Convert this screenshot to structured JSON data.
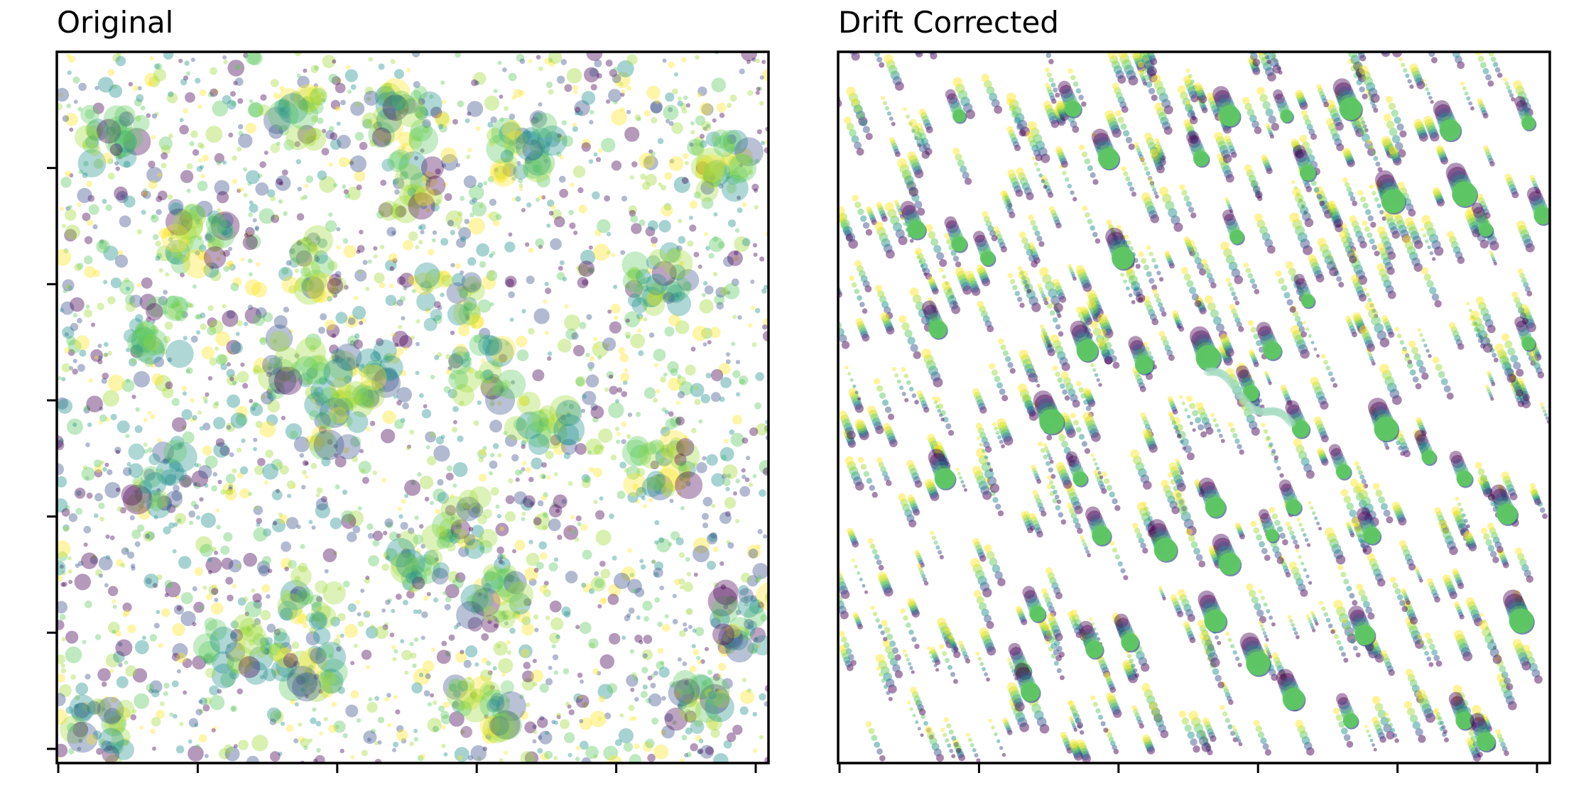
{
  "figure": {
    "panels": [
      {
        "id": "original",
        "title": "Original"
      },
      {
        "id": "drift",
        "title": "Drift Corrected"
      }
    ]
  },
  "chart_data": [
    {
      "type": "scatter",
      "title": "Original",
      "xlabel": "",
      "ylabel": "",
      "xlim": [
        0,
        1
      ],
      "ylim": [
        0,
        1
      ],
      "x_ticks_count": 6,
      "y_ticks_count": 6,
      "tick_labels": "none",
      "grid": false,
      "legend": "none",
      "colormap": "viridis",
      "colors": [
        "#440154",
        "#3b528b",
        "#21918c",
        "#5ec962",
        "#a0da39",
        "#fde725"
      ],
      "point_alpha": 0.4,
      "description_of_data": "dense cloud of semi-transparent circles of varying size; clusters of large green/teal circles scattered across the field",
      "clusters": [
        {
          "x": 0.08,
          "y": 0.88
        },
        {
          "x": 0.33,
          "y": 0.9
        },
        {
          "x": 0.49,
          "y": 0.91
        },
        {
          "x": 0.66,
          "y": 0.87
        },
        {
          "x": 0.94,
          "y": 0.84
        },
        {
          "x": 0.5,
          "y": 0.81
        },
        {
          "x": 0.2,
          "y": 0.74
        },
        {
          "x": 0.36,
          "y": 0.7
        },
        {
          "x": 0.55,
          "y": 0.65
        },
        {
          "x": 0.85,
          "y": 0.68
        },
        {
          "x": 0.14,
          "y": 0.61
        },
        {
          "x": 0.34,
          "y": 0.56
        },
        {
          "x": 0.43,
          "y": 0.54
        },
        {
          "x": 0.6,
          "y": 0.55
        },
        {
          "x": 0.4,
          "y": 0.48
        },
        {
          "x": 0.68,
          "y": 0.47
        },
        {
          "x": 0.14,
          "y": 0.4
        },
        {
          "x": 0.57,
          "y": 0.34
        },
        {
          "x": 0.85,
          "y": 0.42
        },
        {
          "x": 0.52,
          "y": 0.29
        },
        {
          "x": 0.62,
          "y": 0.23
        },
        {
          "x": 0.36,
          "y": 0.24
        },
        {
          "x": 0.25,
          "y": 0.16
        },
        {
          "x": 0.35,
          "y": 0.14
        },
        {
          "x": 0.97,
          "y": 0.2
        },
        {
          "x": 0.9,
          "y": 0.08
        },
        {
          "x": 0.06,
          "y": 0.05
        },
        {
          "x": 0.6,
          "y": 0.08
        }
      ]
    },
    {
      "type": "scatter",
      "title": "Drift Corrected",
      "xlabel": "",
      "ylabel": "",
      "xlim": [
        0,
        1
      ],
      "ylim": [
        0,
        1
      ],
      "x_ticks_count": 6,
      "y_ticks_count": 0,
      "tick_labels": "none",
      "grid": false,
      "legend": "none",
      "colormap": "viridis",
      "colors": [
        "#440154",
        "#3b528b",
        "#21918c",
        "#5ec962",
        "#a0da39",
        "#fde725"
      ],
      "point_alpha": 0.6,
      "description_of_data": "localizations collapsed into short diagonal streaks ending in solid green spots after drift correction",
      "drift_direction": [
        -0.012,
        0.03
      ],
      "spots": [
        {
          "x": 0.33,
          "y": 0.92
        },
        {
          "x": 0.55,
          "y": 0.91
        },
        {
          "x": 0.63,
          "y": 0.91
        },
        {
          "x": 0.72,
          "y": 0.92
        },
        {
          "x": 0.86,
          "y": 0.89
        },
        {
          "x": 0.97,
          "y": 0.9
        },
        {
          "x": 0.17,
          "y": 0.91
        },
        {
          "x": 0.38,
          "y": 0.85
        },
        {
          "x": 0.51,
          "y": 0.85
        },
        {
          "x": 0.66,
          "y": 0.83
        },
        {
          "x": 0.88,
          "y": 0.8
        },
        {
          "x": 0.99,
          "y": 0.77
        },
        {
          "x": 0.11,
          "y": 0.75
        },
        {
          "x": 0.17,
          "y": 0.73
        },
        {
          "x": 0.21,
          "y": 0.71
        },
        {
          "x": 0.4,
          "y": 0.71
        },
        {
          "x": 0.56,
          "y": 0.74
        },
        {
          "x": 0.78,
          "y": 0.79
        },
        {
          "x": 0.91,
          "y": 0.75
        },
        {
          "x": 0.14,
          "y": 0.61
        },
        {
          "x": 0.35,
          "y": 0.58
        },
        {
          "x": 0.43,
          "y": 0.56
        },
        {
          "x": 0.52,
          "y": 0.57
        },
        {
          "x": 0.61,
          "y": 0.58
        },
        {
          "x": 0.66,
          "y": 0.65
        },
        {
          "x": 0.97,
          "y": 0.59
        },
        {
          "x": 0.3,
          "y": 0.48
        },
        {
          "x": 0.58,
          "y": 0.52
        },
        {
          "x": 0.65,
          "y": 0.47
        },
        {
          "x": 0.77,
          "y": 0.47
        },
        {
          "x": 0.15,
          "y": 0.4
        },
        {
          "x": 0.34,
          "y": 0.4
        },
        {
          "x": 0.71,
          "y": 0.41
        },
        {
          "x": 0.83,
          "y": 0.43
        },
        {
          "x": 0.88,
          "y": 0.4
        },
        {
          "x": 0.53,
          "y": 0.36
        },
        {
          "x": 0.64,
          "y": 0.36
        },
        {
          "x": 0.37,
          "y": 0.32
        },
        {
          "x": 0.46,
          "y": 0.3
        },
        {
          "x": 0.55,
          "y": 0.28
        },
        {
          "x": 0.61,
          "y": 0.32
        },
        {
          "x": 0.75,
          "y": 0.32
        },
        {
          "x": 0.94,
          "y": 0.35
        },
        {
          "x": 0.28,
          "y": 0.21
        },
        {
          "x": 0.41,
          "y": 0.17
        },
        {
          "x": 0.53,
          "y": 0.2
        },
        {
          "x": 0.74,
          "y": 0.18
        },
        {
          "x": 0.96,
          "y": 0.2
        },
        {
          "x": 0.26,
          "y": 0.13
        },
        {
          "x": 0.27,
          "y": 0.1
        },
        {
          "x": 0.36,
          "y": 0.16
        },
        {
          "x": 0.59,
          "y": 0.14
        },
        {
          "x": 0.64,
          "y": 0.09
        },
        {
          "x": 0.88,
          "y": 0.06
        },
        {
          "x": 0.72,
          "y": 0.06
        },
        {
          "x": 0.91,
          "y": 0.03
        }
      ]
    }
  ]
}
